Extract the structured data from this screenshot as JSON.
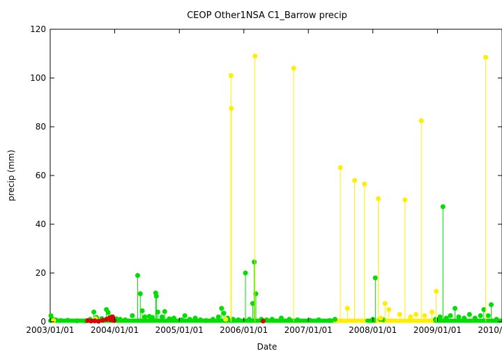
{
  "chart_data": {
    "type": "scatter",
    "title": "CEOP Other1NSA C1_Barrow  precip",
    "xlabel": "Date",
    "ylabel": "precip (mm)",
    "x_type": "date",
    "xlim": [
      "2003-01-01",
      "2010-01-01"
    ],
    "ylim": [
      0,
      120
    ],
    "x_ticks": [
      "2003-01-01",
      "2004-01-01",
      "2005-01-01",
      "2006-01-01",
      "2007-01-01",
      "2008-01-01",
      "2009-01-01",
      "2010-01-01"
    ],
    "x_tick_labels": [
      "2003/01/01",
      "2004/01/01",
      "2005/01/01",
      "2006/01/01",
      "2007/01/01",
      "2008/01/01",
      "2009/01/01",
      "2010/01/01"
    ],
    "y_ticks": [
      0,
      20,
      40,
      60,
      80,
      100,
      120
    ],
    "y_tick_labels": [
      "0",
      "20",
      "40",
      "60",
      "80",
      "100",
      "120"
    ],
    "grid": false,
    "legend": "none",
    "colors": {
      "green": "#00dd00",
      "yellow": "#ffee00",
      "red": "#dd0000"
    },
    "series": [
      {
        "color": "green",
        "points": [
          [
            "2003-01-05",
            2.5
          ],
          [
            "2003-01-12",
            1.2
          ],
          [
            "2003-02-01",
            0.8
          ],
          [
            "2003-03-01",
            0.5
          ],
          [
            "2003-04-10",
            0.6
          ],
          [
            "2003-06-01",
            0.4
          ],
          [
            "2003-07-20",
            0.3
          ],
          [
            "2003-08-15",
            1.0
          ],
          [
            "2003-09-05",
            4.0
          ],
          [
            "2003-09-20",
            1.8
          ],
          [
            "2003-10-20",
            1.3
          ],
          [
            "2003-11-15",
            5.0
          ],
          [
            "2003-11-25",
            3.8
          ],
          [
            "2003-12-10",
            2.0
          ],
          [
            "2004-01-10",
            1.2
          ],
          [
            "2004-02-01",
            1.0
          ],
          [
            "2004-03-01",
            0.8
          ],
          [
            "2004-04-10",
            2.5
          ],
          [
            "2004-05-10",
            19.0
          ],
          [
            "2004-05-25",
            11.5
          ],
          [
            "2004-06-05",
            4.5
          ],
          [
            "2004-06-20",
            2.0
          ],
          [
            "2004-07-15",
            2.2
          ],
          [
            "2004-08-01",
            1.8
          ],
          [
            "2004-08-20",
            11.8
          ],
          [
            "2004-08-24",
            10.5
          ],
          [
            "2004-09-01",
            4.0
          ],
          [
            "2004-09-25",
            2.0
          ],
          [
            "2004-10-10",
            4.2
          ],
          [
            "2004-11-05",
            1.2
          ],
          [
            "2004-12-01",
            1.5
          ],
          [
            "2005-01-15",
            0.8
          ],
          [
            "2005-02-01",
            2.5
          ],
          [
            "2005-03-01",
            1.0
          ],
          [
            "2005-04-01",
            1.5
          ],
          [
            "2005-05-01",
            0.8
          ],
          [
            "2005-06-01",
            0.5
          ],
          [
            "2005-07-10",
            1.0
          ],
          [
            "2005-08-10",
            2.0
          ],
          [
            "2005-08-28",
            5.5
          ],
          [
            "2005-09-10",
            3.5
          ],
          [
            "2005-10-01",
            1.5
          ],
          [
            "2005-11-01",
            1.0
          ],
          [
            "2005-12-01",
            0.8
          ],
          [
            "2006-01-10",
            20.0
          ],
          [
            "2006-02-01",
            1.0
          ],
          [
            "2006-02-20",
            7.5
          ],
          [
            "2006-03-01",
            24.5
          ],
          [
            "2006-03-10",
            11.5
          ],
          [
            "2006-04-10",
            1.0
          ],
          [
            "2006-05-10",
            0.8
          ],
          [
            "2006-06-10",
            1.0
          ],
          [
            "2006-08-01",
            1.5
          ],
          [
            "2006-09-15",
            1.0
          ],
          [
            "2006-11-01",
            0.8
          ],
          [
            "2007-01-10",
            0.6
          ],
          [
            "2007-03-01",
            0.8
          ],
          [
            "2007-05-01",
            0.5
          ],
          [
            "2007-06-01",
            1.0
          ],
          [
            "2008-01-01",
            1.0
          ],
          [
            "2008-01-15",
            18.0
          ],
          [
            "2008-02-10",
            1.0
          ],
          [
            "2008-03-01",
            0.8
          ],
          [
            "2008-12-20",
            1.0
          ],
          [
            "2009-01-15",
            2.0
          ],
          [
            "2009-02-01",
            47.2
          ],
          [
            "2009-02-20",
            1.5
          ],
          [
            "2009-03-15",
            2.5
          ],
          [
            "2009-04-10",
            5.5
          ],
          [
            "2009-05-01",
            2.0
          ],
          [
            "2009-06-01",
            1.5
          ],
          [
            "2009-07-01",
            3.0
          ],
          [
            "2009-08-01",
            1.5
          ],
          [
            "2009-09-01",
            2.5
          ],
          [
            "2009-09-20",
            5.0
          ],
          [
            "2009-10-15",
            2.5
          ],
          [
            "2009-11-01",
            7.0
          ],
          [
            "2009-12-01",
            1.0
          ]
        ]
      },
      {
        "color": "yellow",
        "points": [
          [
            "2003-01-20",
            0.5
          ],
          [
            "2003-09-15",
            1.2
          ],
          [
            "2005-09-20",
            1.0
          ],
          [
            "2005-10-20",
            101.0
          ],
          [
            "2005-10-22",
            87.5
          ],
          [
            "2006-03-05",
            109.0
          ],
          [
            "2006-10-10",
            104.0
          ],
          [
            "2007-07-01",
            63.2
          ],
          [
            "2007-08-10",
            5.5
          ],
          [
            "2007-09-20",
            58.0
          ],
          [
            "2007-11-15",
            56.5
          ],
          [
            "2008-02-01",
            50.5
          ],
          [
            "2008-02-15",
            1.5
          ],
          [
            "2008-03-10",
            7.5
          ],
          [
            "2008-04-01",
            5.0
          ],
          [
            "2008-06-01",
            3.0
          ],
          [
            "2008-07-01",
            50.0
          ],
          [
            "2008-08-01",
            2.0
          ],
          [
            "2008-09-01",
            3.0
          ],
          [
            "2008-10-01",
            82.5
          ],
          [
            "2008-10-20",
            2.5
          ],
          [
            "2008-12-01",
            4.0
          ],
          [
            "2008-12-25",
            12.5
          ],
          [
            "2009-10-01",
            108.5
          ]
        ]
      },
      {
        "color": "red",
        "points": [
          [
            "2003-08-01",
            0.5
          ],
          [
            "2003-08-20",
            0.3
          ],
          [
            "2003-09-10",
            0.4
          ],
          [
            "2003-10-01",
            0.2
          ],
          [
            "2003-10-25",
            0.6
          ],
          [
            "2003-11-15",
            1.0
          ],
          [
            "2003-12-01",
            1.5
          ],
          [
            "2003-12-10",
            0.8
          ],
          [
            "2003-12-20",
            2.0
          ],
          [
            "2003-12-28",
            0.5
          ],
          [
            "2006-04-20",
            0.3
          ]
        ]
      }
    ]
  }
}
